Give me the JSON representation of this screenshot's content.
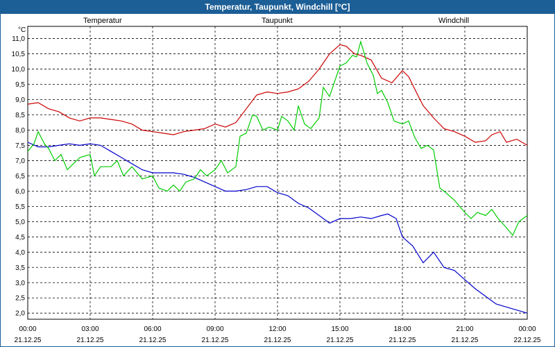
{
  "window": {
    "title": "Temperatur, Taupunkt, Windchill [°C]"
  },
  "chart_data": {
    "type": "line",
    "title": "Temperatur, Taupunkt, Windchill [°C]",
    "ylabel": "°C",
    "ylim": [
      1.8,
      11.4
    ],
    "xlim": [
      0,
      24
    ],
    "grid": true,
    "yticks": [
      "2,0",
      "2,5",
      "3,0",
      "3,5",
      "4,0",
      "4,5",
      "5,0",
      "5,5",
      "6,0",
      "6,5",
      "7,0",
      "7,5",
      "8,0",
      "8,5",
      "9,0",
      "9,5",
      "10,0",
      "10,5",
      "11,0"
    ],
    "ytick_values": [
      2.0,
      2.5,
      3.0,
      3.5,
      4.0,
      4.5,
      5.0,
      5.5,
      6.0,
      6.5,
      7.0,
      7.5,
      8.0,
      8.5,
      9.0,
      9.5,
      10.0,
      10.5,
      11.0
    ],
    "xticks": [
      {
        "h": 0,
        "time": "00:00",
        "date": "21.12.25"
      },
      {
        "h": 3,
        "time": "03:00",
        "date": "21.12.25"
      },
      {
        "h": 6,
        "time": "06:00",
        "date": "21.12.25"
      },
      {
        "h": 9,
        "time": "09:00",
        "date": "21.12.25"
      },
      {
        "h": 12,
        "time": "12:00",
        "date": "21.12.25"
      },
      {
        "h": 15,
        "time": "15:00",
        "date": "21.12.25"
      },
      {
        "h": 18,
        "time": "18:00",
        "date": "21.12.25"
      },
      {
        "h": 21,
        "time": "21:00",
        "date": "21.12.25"
      },
      {
        "h": 24,
        "time": "00:00",
        "date": "22.12.25"
      }
    ],
    "series": [
      {
        "name": "Temperatur",
        "color": "#cc0000",
        "points": [
          [
            0,
            8.85
          ],
          [
            0.5,
            8.9
          ],
          [
            1,
            8.7
          ],
          [
            1.5,
            8.6
          ],
          [
            2,
            8.4
          ],
          [
            2.5,
            8.3
          ],
          [
            3,
            8.4
          ],
          [
            3.5,
            8.4
          ],
          [
            4,
            8.35
          ],
          [
            4.5,
            8.3
          ],
          [
            5,
            8.2
          ],
          [
            5.5,
            8.0
          ],
          [
            6,
            7.95
          ],
          [
            6.5,
            7.9
          ],
          [
            7,
            7.85
          ],
          [
            7.5,
            7.95
          ],
          [
            8,
            8.0
          ],
          [
            8.5,
            8.05
          ],
          [
            9,
            8.2
          ],
          [
            9.5,
            8.1
          ],
          [
            10,
            8.25
          ],
          [
            10.5,
            8.7
          ],
          [
            11,
            9.15
          ],
          [
            11.5,
            9.25
          ],
          [
            12,
            9.2
          ],
          [
            12.5,
            9.25
          ],
          [
            13,
            9.35
          ],
          [
            13.5,
            9.6
          ],
          [
            14,
            10.0
          ],
          [
            14.5,
            10.5
          ],
          [
            15,
            10.8
          ],
          [
            15.3,
            10.75
          ],
          [
            15.7,
            10.5
          ],
          [
            16,
            10.45
          ],
          [
            16.5,
            10.3
          ],
          [
            17,
            9.7
          ],
          [
            17.5,
            9.55
          ],
          [
            18,
            9.95
          ],
          [
            18.3,
            9.75
          ],
          [
            18.7,
            9.2
          ],
          [
            19,
            8.8
          ],
          [
            19.5,
            8.4
          ],
          [
            20,
            8.05
          ],
          [
            20.5,
            7.95
          ],
          [
            21,
            7.8
          ],
          [
            21.5,
            7.6
          ],
          [
            22,
            7.65
          ],
          [
            22.3,
            7.85
          ],
          [
            22.7,
            7.95
          ],
          [
            23,
            7.6
          ],
          [
            23.5,
            7.7
          ],
          [
            24,
            7.5
          ]
        ]
      },
      {
        "name": "Taupunkt",
        "color": "#0000cc",
        "points": [
          [
            0,
            7.6
          ],
          [
            0.5,
            7.45
          ],
          [
            1,
            7.45
          ],
          [
            1.5,
            7.5
          ],
          [
            2,
            7.55
          ],
          [
            2.5,
            7.5
          ],
          [
            3,
            7.55
          ],
          [
            3.5,
            7.5
          ],
          [
            4,
            7.3
          ],
          [
            4.5,
            7.1
          ],
          [
            5,
            6.9
          ],
          [
            5.5,
            6.7
          ],
          [
            6,
            6.6
          ],
          [
            6.5,
            6.6
          ],
          [
            7,
            6.6
          ],
          [
            7.5,
            6.55
          ],
          [
            8,
            6.45
          ],
          [
            8.5,
            6.3
          ],
          [
            9,
            6.15
          ],
          [
            9.5,
            6.0
          ],
          [
            10,
            6.0
          ],
          [
            10.5,
            6.05
          ],
          [
            11,
            6.15
          ],
          [
            11.5,
            6.15
          ],
          [
            12,
            5.95
          ],
          [
            12.5,
            5.85
          ],
          [
            13,
            5.6
          ],
          [
            13.5,
            5.45
          ],
          [
            14,
            5.2
          ],
          [
            14.5,
            4.95
          ],
          [
            15,
            5.1
          ],
          [
            15.5,
            5.1
          ],
          [
            16,
            5.15
          ],
          [
            16.5,
            5.1
          ],
          [
            17,
            5.2
          ],
          [
            17.3,
            5.25
          ],
          [
            17.7,
            5.1
          ],
          [
            18,
            4.5
          ],
          [
            18.5,
            4.2
          ],
          [
            19,
            3.65
          ],
          [
            19.5,
            4.0
          ],
          [
            20,
            3.5
          ],
          [
            20.5,
            3.4
          ],
          [
            21,
            3.1
          ],
          [
            21.5,
            2.8
          ],
          [
            22,
            2.55
          ],
          [
            22.5,
            2.3
          ],
          [
            23,
            2.2
          ],
          [
            23.5,
            2.1
          ],
          [
            24,
            2.0
          ]
        ]
      },
      {
        "name": "Windchill",
        "color": "#00cc00",
        "points": [
          [
            0,
            7.3
          ],
          [
            0.3,
            7.55
          ],
          [
            0.5,
            7.95
          ],
          [
            0.8,
            7.55
          ],
          [
            1,
            7.4
          ],
          [
            1.3,
            7.0
          ],
          [
            1.6,
            7.2
          ],
          [
            1.9,
            6.7
          ],
          [
            2.2,
            6.9
          ],
          [
            2.5,
            7.1
          ],
          [
            3,
            7.2
          ],
          [
            3.2,
            6.5
          ],
          [
            3.5,
            6.8
          ],
          [
            4,
            6.8
          ],
          [
            4.3,
            7.0
          ],
          [
            4.6,
            6.5
          ],
          [
            5,
            6.8
          ],
          [
            5.5,
            6.4
          ],
          [
            6,
            6.5
          ],
          [
            6.3,
            6.1
          ],
          [
            6.7,
            6.0
          ],
          [
            7,
            6.2
          ],
          [
            7.3,
            6.0
          ],
          [
            7.6,
            6.3
          ],
          [
            8,
            6.4
          ],
          [
            8.3,
            6.7
          ],
          [
            8.6,
            6.5
          ],
          [
            9,
            6.7
          ],
          [
            9.3,
            7.0
          ],
          [
            9.6,
            6.6
          ],
          [
            10,
            6.8
          ],
          [
            10.2,
            7.8
          ],
          [
            10.5,
            7.9
          ],
          [
            10.8,
            8.5
          ],
          [
            11,
            8.45
          ],
          [
            11.3,
            8.0
          ],
          [
            11.6,
            8.1
          ],
          [
            12,
            8.0
          ],
          [
            12.2,
            8.45
          ],
          [
            12.5,
            8.3
          ],
          [
            12.8,
            8.0
          ],
          [
            13,
            8.8
          ],
          [
            13.3,
            8.2
          ],
          [
            13.6,
            8.05
          ],
          [
            14,
            8.4
          ],
          [
            14.2,
            9.4
          ],
          [
            14.5,
            9.1
          ],
          [
            14.8,
            9.7
          ],
          [
            15,
            10.1
          ],
          [
            15.3,
            10.2
          ],
          [
            15.6,
            10.45
          ],
          [
            15.8,
            10.4
          ],
          [
            16,
            10.9
          ],
          [
            16.3,
            10.2
          ],
          [
            16.6,
            9.8
          ],
          [
            16.8,
            9.2
          ],
          [
            17,
            9.3
          ],
          [
            17.3,
            8.9
          ],
          [
            17.6,
            8.3
          ],
          [
            18,
            8.2
          ],
          [
            18.3,
            8.3
          ],
          [
            18.6,
            7.75
          ],
          [
            18.9,
            7.4
          ],
          [
            19.2,
            7.5
          ],
          [
            19.5,
            7.35
          ],
          [
            19.8,
            6.1
          ],
          [
            20,
            6.0
          ],
          [
            20.5,
            5.7
          ],
          [
            21,
            5.3
          ],
          [
            21.3,
            5.1
          ],
          [
            21.6,
            5.3
          ],
          [
            22,
            5.2
          ],
          [
            22.3,
            5.4
          ],
          [
            22.6,
            5.1
          ],
          [
            23,
            4.8
          ],
          [
            23.3,
            4.55
          ],
          [
            23.6,
            5.0
          ],
          [
            24,
            5.2
          ]
        ]
      }
    ]
  }
}
